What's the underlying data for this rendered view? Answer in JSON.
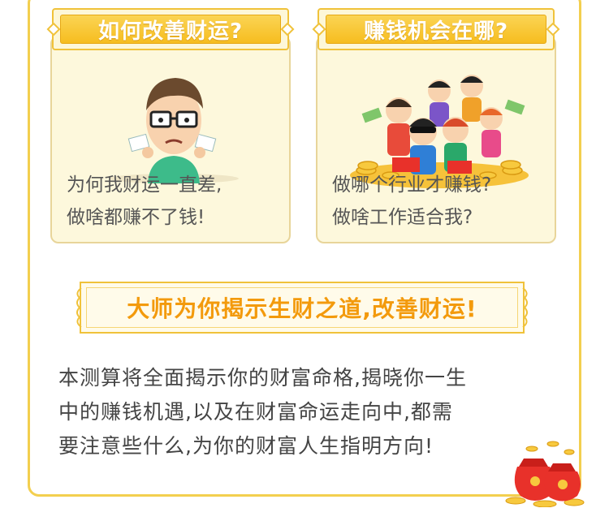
{
  "cards": [
    {
      "title": "如何改善财运?",
      "lines": [
        "为何我财运一直差,",
        "做啥都赚不了钱!"
      ],
      "illustration_icon": "worried-man-icon"
    },
    {
      "title": "赚钱机会在哪?",
      "lines": [
        "做哪个行业才赚钱?",
        "做啥工作适合我?"
      ],
      "illustration_icon": "happy-crowd-money-icon"
    }
  ],
  "banner": {
    "text": "大师为你揭示生财之道,改善财运!"
  },
  "description": {
    "lines": [
      "本测算将全面揭示你的财富命格,揭晓你一生",
      "中的赚钱机遇,以及在财富命运走向中,都需",
      "要注意些什么,为你的财富人生指明方向!"
    ]
  },
  "decoration": {
    "icon": "money-bag-icon"
  },
  "colors": {
    "accent": "#f6bd1f",
    "banner_text": "#f39a0c",
    "card_bg": "#fdf8dc",
    "border": "#f3cf4f"
  }
}
